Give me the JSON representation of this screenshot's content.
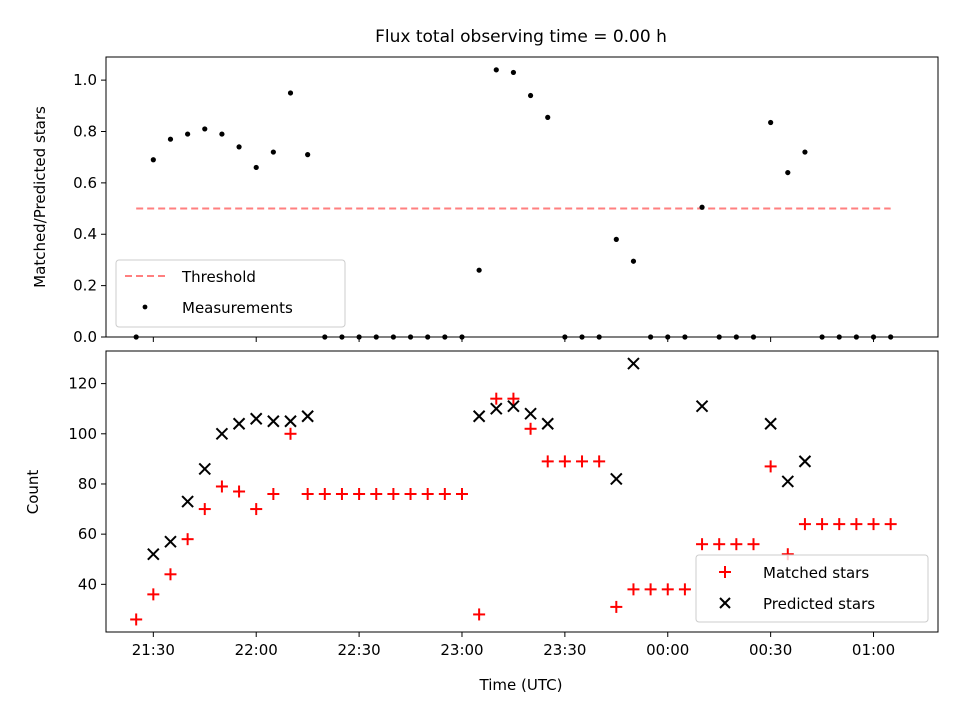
{
  "title": "Flux total observing time = 0.00 h",
  "chart_data": [
    {
      "type": "scatter",
      "title": "Flux total observing time = 0.00 h",
      "xlabel": "",
      "ylabel": "Matched/Predicted stars",
      "ylim": [
        0.0,
        1.09
      ],
      "yticks": [
        0.0,
        0.2,
        0.4,
        0.6,
        0.8,
        1.0
      ],
      "ytick_labels": [
        "0.0",
        "0.2",
        "0.4",
        "0.6",
        "0.8",
        "1.0"
      ],
      "legend_position": "lower-left",
      "series": [
        {
          "name": "Threshold",
          "style": "dashed-line",
          "color": "#ff7f7f",
          "x": [
            "21:25",
            "01:05"
          ],
          "y": [
            0.5,
            0.5
          ]
        },
        {
          "name": "Measurements",
          "style": "dot",
          "color": "#000000",
          "x": [
            "21:25",
            "21:30",
            "21:35",
            "21:40",
            "21:45",
            "21:50",
            "21:55",
            "22:00",
            "22:05",
            "22:10",
            "22:15",
            "22:20",
            "22:25",
            "22:30",
            "22:35",
            "22:40",
            "22:45",
            "22:50",
            "22:55",
            "23:00",
            "23:05",
            "23:10",
            "23:15",
            "23:20",
            "23:25",
            "23:30",
            "23:35",
            "23:40",
            "23:45",
            "23:50",
            "23:55",
            "00:00",
            "00:05",
            "00:10",
            "00:15",
            "00:20",
            "00:25",
            "00:30",
            "00:35",
            "00:40",
            "00:45",
            "00:50",
            "00:55",
            "01:00",
            "01:05"
          ],
          "y": [
            0.0,
            0.69,
            0.77,
            0.79,
            0.81,
            0.79,
            0.74,
            0.66,
            0.72,
            0.95,
            0.71,
            0.0,
            0.0,
            0.0,
            0.0,
            0.0,
            0.0,
            0.0,
            0.0,
            0.0,
            0.26,
            1.04,
            1.03,
            0.94,
            0.855,
            0.0,
            0.0,
            0.0,
            0.38,
            0.295,
            0.0,
            0.0,
            0.0,
            0.505,
            0.0,
            0.0,
            0.0,
            0.835,
            0.64,
            0.72,
            0.0,
            0.0,
            0.0,
            0.0,
            0.0
          ]
        }
      ]
    },
    {
      "type": "scatter",
      "title": "",
      "xlabel": "Time (UTC)",
      "ylabel": "Count",
      "ylim": [
        21,
        133
      ],
      "yticks": [
        40,
        60,
        80,
        100,
        120
      ],
      "ytick_labels": [
        "40",
        "60",
        "80",
        "100",
        "120"
      ],
      "xtick_labels": [
        "21:30",
        "22:00",
        "22:30",
        "23:00",
        "23:30",
        "00:00",
        "00:30",
        "01:00"
      ],
      "legend_position": "lower-right",
      "series": [
        {
          "name": "Matched stars",
          "marker": "+",
          "color": "#ff0000",
          "x": [
            "21:25",
            "21:30",
            "21:35",
            "21:40",
            "21:45",
            "21:50",
            "21:55",
            "22:00",
            "22:05",
            "22:10",
            "22:15",
            "22:20",
            "22:25",
            "22:30",
            "22:35",
            "22:40",
            "22:45",
            "22:50",
            "22:55",
            "23:00",
            "23:05",
            "23:10",
            "23:15",
            "23:20",
            "23:25",
            "23:30",
            "23:35",
            "23:40",
            "23:45",
            "23:50",
            "23:55",
            "00:00",
            "00:05",
            "00:10",
            "00:15",
            "00:20",
            "00:25",
            "00:30",
            "00:35",
            "00:40",
            "00:45",
            "00:50",
            "00:55",
            "01:00",
            "01:05"
          ],
          "y": [
            26,
            36,
            44,
            58,
            70,
            79,
            77,
            70,
            76,
            100,
            76,
            76,
            76,
            76,
            76,
            76,
            76,
            76,
            76,
            76,
            28,
            114,
            114,
            102,
            89,
            89,
            89,
            89,
            31,
            38,
            38,
            38,
            38,
            56,
            56,
            56,
            56,
            87,
            52,
            64,
            64,
            64,
            64,
            64,
            64
          ]
        },
        {
          "name": "Predicted stars",
          "marker": "x",
          "color": "#000000",
          "x": [
            "21:30",
            "21:35",
            "21:40",
            "21:45",
            "21:50",
            "21:55",
            "22:00",
            "22:05",
            "22:10",
            "22:15",
            "23:05",
            "23:10",
            "23:15",
            "23:20",
            "23:25",
            "23:45",
            "23:50",
            "00:10",
            "00:30",
            "00:35",
            "00:40"
          ],
          "y": [
            52,
            57,
            73,
            86,
            100,
            104,
            106,
            105,
            105,
            107,
            107,
            110,
            111,
            108,
            104,
            82,
            128,
            111,
            104,
            81,
            89
          ]
        }
      ]
    }
  ],
  "colors": {
    "matched": "#ff0000",
    "predicted": "#000000",
    "threshold": "#ff7f7f",
    "measurement": "#000000"
  }
}
